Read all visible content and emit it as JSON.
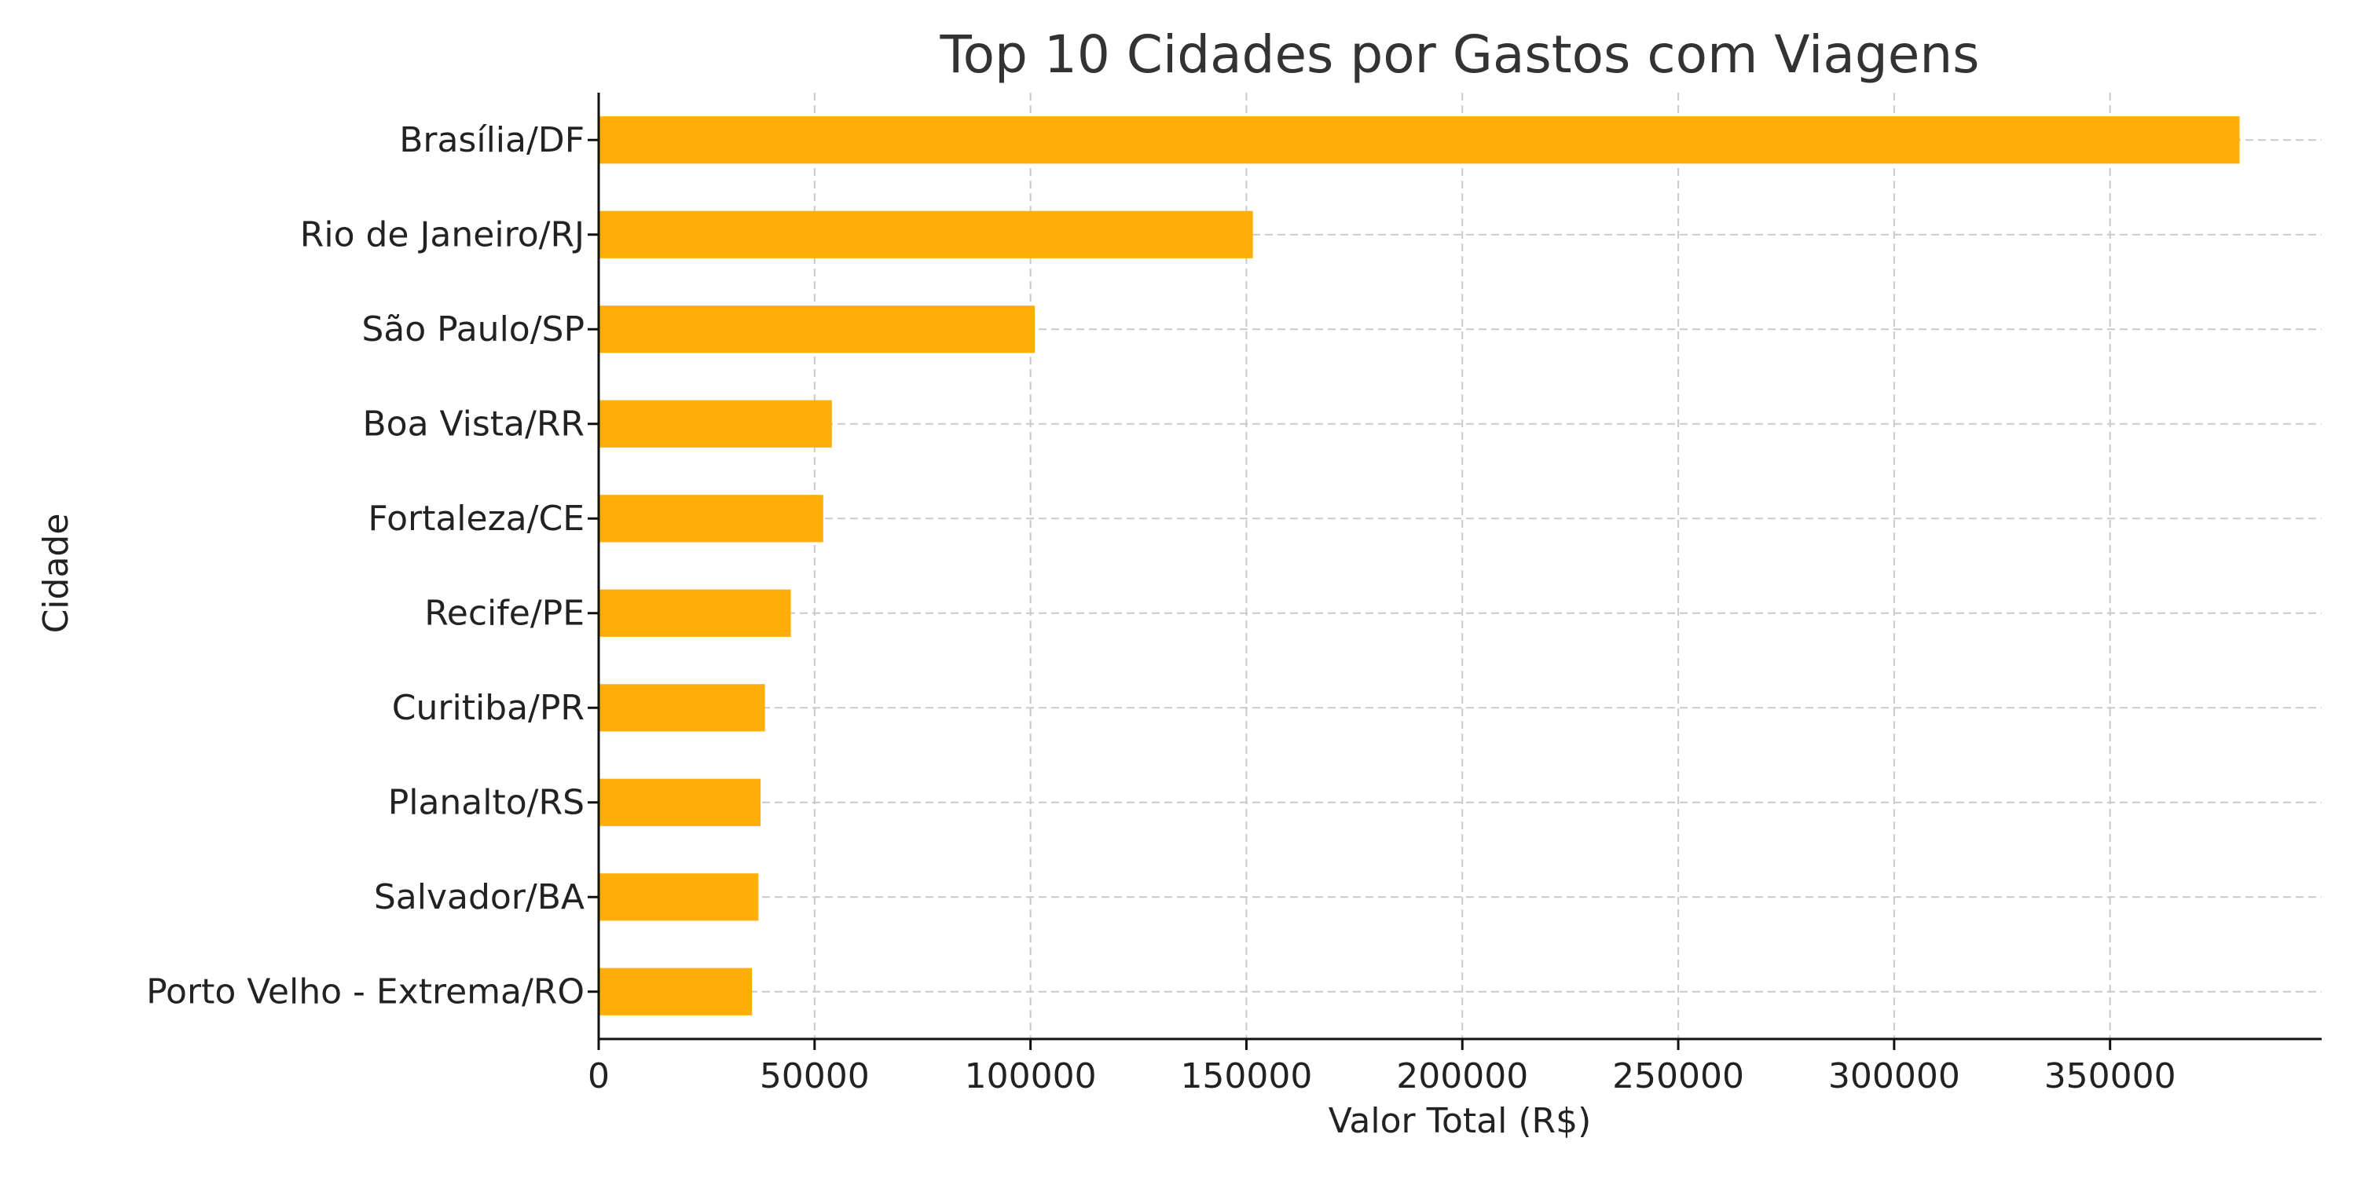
{
  "chart_data": {
    "type": "bar",
    "orientation": "horizontal",
    "title": "Top 10 Cidades por Gastos com Viagens",
    "xlabel": "Valor Total (R$)",
    "ylabel": "Cidade",
    "categories": [
      "Brasília/DF",
      "Rio de Janeiro/RJ",
      "São Paulo/SP",
      "Boa Vista/RR",
      "Fortaleza/CE",
      "Recife/PE",
      "Curitiba/PR",
      "Planalto/RS",
      "Salvador/BA",
      "Porto Velho - Extrema/RO"
    ],
    "values": [
      380000,
      151500,
      101000,
      54000,
      52000,
      44500,
      38500,
      37500,
      37000,
      35500
    ],
    "xlim": [
      0,
      399000
    ],
    "xticks": [
      0,
      50000,
      100000,
      150000,
      200000,
      250000,
      300000,
      350000
    ],
    "xtick_labels": [
      "0",
      "50000",
      "100000",
      "150000",
      "200000",
      "250000",
      "300000",
      "350000"
    ],
    "grid": true,
    "colors": {
      "bar": "#FFAE09"
    }
  }
}
